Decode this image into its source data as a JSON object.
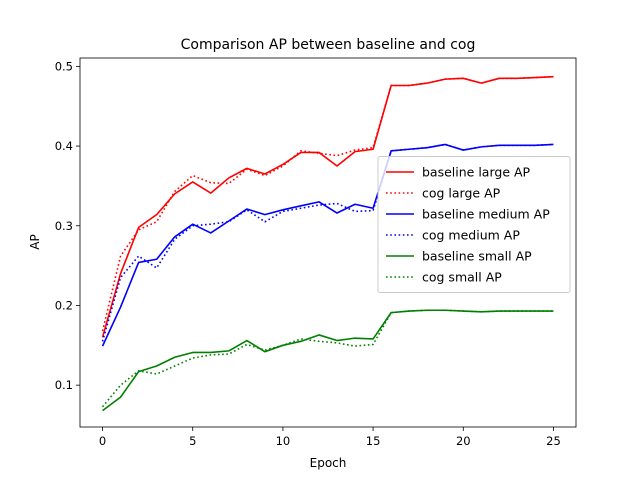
{
  "chart_data": {
    "type": "line",
    "title": "Comparison AP between baseline and cog",
    "xlabel": "Epoch",
    "ylabel": "AP",
    "xlim": [
      -1.25,
      26.25
    ],
    "ylim": [
      0.0475,
      0.5105
    ],
    "xticks": [
      0,
      5,
      10,
      15,
      20,
      25
    ],
    "xtick_labels": [
      "0",
      "5",
      "10",
      "15",
      "20",
      "25"
    ],
    "yticks": [
      0.1,
      0.2,
      0.3,
      0.4,
      0.5
    ],
    "ytick_labels": [
      "0.1",
      "0.2",
      "0.3",
      "0.4",
      "0.5"
    ],
    "grid": false,
    "legend_position": "center-right",
    "x": [
      0,
      1,
      2,
      3,
      4,
      5,
      6,
      7,
      8,
      9,
      10,
      11,
      12,
      13,
      14,
      15,
      16,
      17,
      18,
      19,
      20,
      21,
      22,
      23,
      24,
      25
    ],
    "series": [
      {
        "name": "baseline large AP",
        "color": "#ff0000",
        "style": "solid",
        "values": [
          0.16,
          0.24,
          0.298,
          0.314,
          0.34,
          0.355,
          0.341,
          0.36,
          0.372,
          0.365,
          0.377,
          0.392,
          0.392,
          0.375,
          0.393,
          0.396,
          0.476,
          0.476,
          0.479,
          0.484,
          0.485,
          0.479,
          0.485,
          0.485,
          0.486,
          0.487
        ]
      },
      {
        "name": "cog large AP",
        "color": "#ff0000",
        "style": "dotted",
        "values": [
          0.168,
          0.262,
          0.295,
          0.305,
          0.343,
          0.363,
          0.354,
          0.353,
          0.371,
          0.363,
          0.375,
          0.394,
          0.391,
          0.388,
          0.395,
          0.398,
          0.476,
          0.476,
          0.479,
          0.484,
          0.485,
          0.479,
          0.485,
          0.485,
          0.486,
          0.487
        ]
      },
      {
        "name": "baseline medium AP",
        "color": "#0000ff",
        "style": "solid",
        "values": [
          0.149,
          0.198,
          0.254,
          0.258,
          0.286,
          0.302,
          0.291,
          0.306,
          0.321,
          0.314,
          0.32,
          0.325,
          0.33,
          0.316,
          0.327,
          0.322,
          0.394,
          0.396,
          0.398,
          0.402,
          0.395,
          0.399,
          0.401,
          0.401,
          0.401,
          0.402
        ]
      },
      {
        "name": "cog medium AP",
        "color": "#0000ff",
        "style": "dotted",
        "values": [
          0.155,
          0.235,
          0.262,
          0.247,
          0.283,
          0.3,
          0.302,
          0.305,
          0.32,
          0.305,
          0.318,
          0.322,
          0.326,
          0.328,
          0.318,
          0.319,
          0.394,
          0.396,
          0.398,
          0.402,
          0.395,
          0.399,
          0.401,
          0.401,
          0.401,
          0.402
        ]
      },
      {
        "name": "baseline small AP",
        "color": "#008000",
        "style": "solid",
        "values": [
          0.068,
          0.085,
          0.117,
          0.124,
          0.135,
          0.141,
          0.141,
          0.143,
          0.156,
          0.142,
          0.15,
          0.155,
          0.163,
          0.156,
          0.159,
          0.158,
          0.191,
          0.193,
          0.194,
          0.194,
          0.193,
          0.192,
          0.193,
          0.193,
          0.193,
          0.193
        ]
      },
      {
        "name": "cog small AP",
        "color": "#008000",
        "style": "dotted",
        "values": [
          0.073,
          0.1,
          0.118,
          0.114,
          0.124,
          0.134,
          0.138,
          0.139,
          0.151,
          0.144,
          0.15,
          0.158,
          0.155,
          0.153,
          0.149,
          0.151,
          0.191,
          0.193,
          0.194,
          0.194,
          0.193,
          0.192,
          0.193,
          0.193,
          0.193,
          0.193
        ]
      }
    ]
  }
}
